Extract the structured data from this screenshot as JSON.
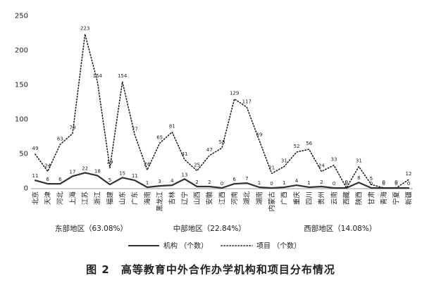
{
  "chart_data": {
    "type": "line",
    "title": "",
    "xlabel": "",
    "ylabel": "",
    "ylim": [
      0,
      250
    ],
    "yticks": [
      0,
      50,
      100,
      150,
      200,
      250
    ],
    "grid": false,
    "legend_placement": "bottom-center",
    "categories": [
      "北京",
      "天津",
      "河北",
      "上海",
      "江苏",
      "浙江",
      "福建",
      "山东",
      "广东",
      "海南",
      "黑龙江",
      "吉林",
      "辽宁",
      "山西",
      "安徽",
      "江西",
      "河南",
      "湖北",
      "湖南",
      "内蒙古",
      "广西",
      "重庆",
      "四川",
      "贵州",
      "云南",
      "西藏",
      "陕西",
      "甘肃",
      "青海",
      "宁夏",
      "新疆"
    ],
    "series": [
      {
        "name": "机构 （个数）",
        "style": "solid",
        "values": [
          11,
          6,
          6,
          17,
          22,
          18,
          5,
          15,
          11,
          1,
          3,
          4,
          13,
          2,
          2,
          0,
          6,
          7,
          1,
          0,
          1,
          4,
          1,
          2,
          0,
          0,
          8,
          0,
          0,
          0,
          0
        ]
      },
      {
        "name": "项目 （个数）",
        "style": "dotted",
        "values": [
          49,
          24,
          63,
          79,
          223,
          154,
          29,
          154,
          77,
          26,
          65,
          81,
          41,
          25,
          47,
          58,
          129,
          117,
          69,
          21,
          31,
          52,
          56,
          24,
          33,
          0,
          31,
          5,
          0,
          0,
          12
        ]
      }
    ],
    "regions": [
      {
        "label": "东部地区（63.08%）",
        "from": 0,
        "to": 9
      },
      {
        "label": "中部地区（22.84%）",
        "from": 10,
        "to": 18
      },
      {
        "label": "西部地区（14.08%）",
        "from": 19,
        "to": 30
      }
    ],
    "caption": "图 2　高等教育中外合作办学机构和项目分布情况",
    "colors": {
      "institution": "#333333",
      "project": "#222222",
      "axis": "#999999"
    }
  }
}
